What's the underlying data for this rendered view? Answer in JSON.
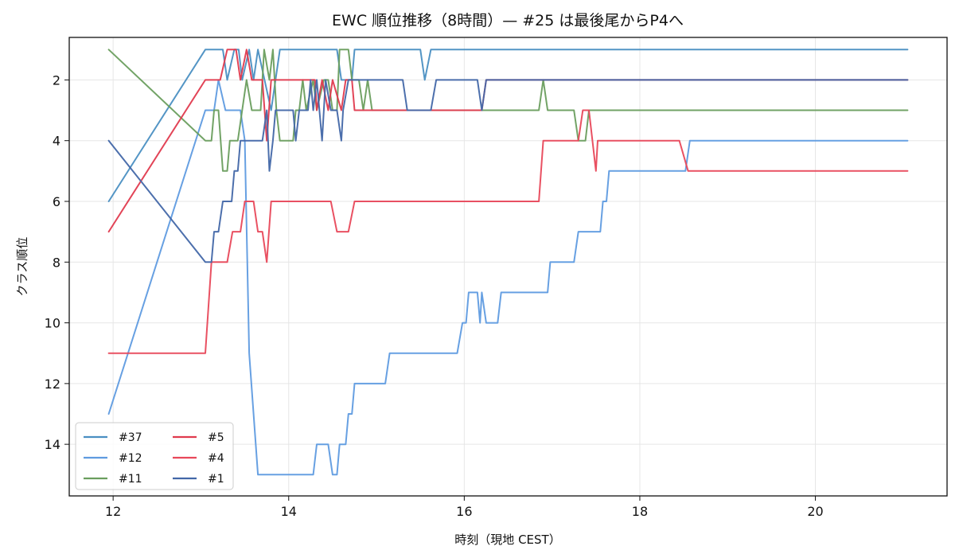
{
  "chart_data": {
    "type": "line",
    "title": "EWC 順位推移（8時間）— #25 は最後尾からP4へ",
    "xlabel": "時刻（現地 CEST）",
    "ylabel": "クラス順位",
    "xlim": [
      11.5,
      21.5
    ],
    "ylim": [
      15.7,
      0.6
    ],
    "y_inverted": true,
    "grid": true,
    "legend_position": "lower-left",
    "legend_columns": 2,
    "x_ticks": [
      12,
      14,
      16,
      18,
      20
    ],
    "x_tick_labels": [
      "12",
      "14",
      "16",
      "18",
      "20"
    ],
    "y_ticks": [
      2,
      4,
      6,
      8,
      10,
      12,
      14
    ],
    "y_tick_labels": [
      "2",
      "4",
      "6",
      "8",
      "10",
      "12",
      "14"
    ],
    "series": [
      {
        "name": "#37",
        "color": "#4a8fc2",
        "points": [
          [
            11.95,
            6
          ],
          [
            13.05,
            1
          ],
          [
            13.25,
            1
          ],
          [
            13.3,
            2
          ],
          [
            13.38,
            1
          ],
          [
            13.43,
            1
          ],
          [
            13.47,
            2
          ],
          [
            13.55,
            1
          ],
          [
            13.6,
            2
          ],
          [
            13.65,
            1
          ],
          [
            13.8,
            3
          ],
          [
            13.9,
            1
          ],
          [
            14.55,
            1
          ],
          [
            14.6,
            2
          ],
          [
            14.72,
            2
          ],
          [
            14.75,
            1
          ],
          [
            15.5,
            1
          ],
          [
            15.55,
            2
          ],
          [
            15.62,
            1
          ],
          [
            21.05,
            1
          ]
        ]
      },
      {
        "name": "#12",
        "color": "#5f9be0",
        "points": [
          [
            11.95,
            13
          ],
          [
            13.05,
            3
          ],
          [
            13.15,
            3
          ],
          [
            13.2,
            2
          ],
          [
            13.28,
            3
          ],
          [
            13.45,
            3
          ],
          [
            13.5,
            4
          ],
          [
            13.55,
            11
          ],
          [
            13.65,
            15
          ],
          [
            14.28,
            15
          ],
          [
            14.32,
            14
          ],
          [
            14.45,
            14
          ],
          [
            14.5,
            15
          ],
          [
            14.55,
            15
          ],
          [
            14.58,
            14
          ],
          [
            14.65,
            14
          ],
          [
            14.68,
            13
          ],
          [
            14.72,
            13
          ],
          [
            14.75,
            12
          ],
          [
            15.1,
            12
          ],
          [
            15.15,
            11
          ],
          [
            15.92,
            11
          ],
          [
            15.98,
            10
          ],
          [
            16.02,
            10
          ],
          [
            16.05,
            9
          ],
          [
            16.15,
            9
          ],
          [
            16.18,
            10
          ],
          [
            16.2,
            9
          ],
          [
            16.25,
            10
          ],
          [
            16.38,
            10
          ],
          [
            16.42,
            9
          ],
          [
            16.95,
            9
          ],
          [
            16.98,
            8
          ],
          [
            17.25,
            8
          ],
          [
            17.3,
            7
          ],
          [
            17.55,
            7
          ],
          [
            17.58,
            6
          ],
          [
            17.62,
            6
          ],
          [
            17.65,
            5
          ],
          [
            18.52,
            5
          ],
          [
            18.57,
            4
          ],
          [
            21.05,
            4
          ]
        ]
      },
      {
        "name": "#11",
        "color": "#6a9e5e",
        "points": [
          [
            11.95,
            1
          ],
          [
            13.05,
            4
          ],
          [
            13.12,
            4
          ],
          [
            13.15,
            3
          ],
          [
            13.2,
            3
          ],
          [
            13.25,
            5
          ],
          [
            13.3,
            5
          ],
          [
            13.33,
            4
          ],
          [
            13.42,
            4
          ],
          [
            13.47,
            3
          ],
          [
            13.52,
            2
          ],
          [
            13.58,
            3
          ],
          [
            13.68,
            3
          ],
          [
            13.72,
            1
          ],
          [
            13.78,
            2
          ],
          [
            13.82,
            1
          ],
          [
            13.86,
            3
          ],
          [
            13.9,
            4
          ],
          [
            14.05,
            4
          ],
          [
            14.08,
            3
          ],
          [
            14.12,
            3
          ],
          [
            14.16,
            2
          ],
          [
            14.2,
            3
          ],
          [
            14.28,
            2
          ],
          [
            14.32,
            3
          ],
          [
            14.4,
            2
          ],
          [
            14.45,
            2
          ],
          [
            14.5,
            3
          ],
          [
            14.55,
            3
          ],
          [
            14.58,
            1
          ],
          [
            14.68,
            1
          ],
          [
            14.72,
            2
          ],
          [
            14.8,
            2
          ],
          [
            14.85,
            3
          ],
          [
            14.9,
            2
          ],
          [
            14.95,
            3
          ],
          [
            16.85,
            3
          ],
          [
            16.9,
            2
          ],
          [
            16.95,
            3
          ],
          [
            17.25,
            3
          ],
          [
            17.3,
            4
          ],
          [
            17.38,
            4
          ],
          [
            17.42,
            3
          ],
          [
            21.05,
            3
          ]
        ]
      },
      {
        "name": "#5",
        "color": "#e03a4e",
        "points": [
          [
            11.95,
            7
          ],
          [
            13.05,
            2
          ],
          [
            13.22,
            2
          ],
          [
            13.3,
            1
          ],
          [
            13.4,
            1
          ],
          [
            13.45,
            2
          ],
          [
            13.52,
            1
          ],
          [
            13.58,
            2
          ],
          [
            13.7,
            2
          ],
          [
            13.75,
            4
          ],
          [
            13.8,
            2
          ],
          [
            14.3,
            2
          ],
          [
            14.32,
            3
          ],
          [
            14.38,
            2
          ],
          [
            14.45,
            3
          ],
          [
            14.5,
            2
          ],
          [
            14.6,
            3
          ],
          [
            14.65,
            2
          ],
          [
            14.72,
            2
          ],
          [
            14.75,
            3
          ],
          [
            16.2,
            3
          ],
          [
            16.25,
            2
          ],
          [
            21.05,
            2
          ]
        ]
      },
      {
        "name": "#4",
        "color": "#e8485a",
        "points": [
          [
            11.95,
            11
          ],
          [
            13.05,
            11
          ],
          [
            13.12,
            8
          ],
          [
            13.3,
            8
          ],
          [
            13.36,
            7
          ],
          [
            13.45,
            7
          ],
          [
            13.5,
            6
          ],
          [
            13.6,
            6
          ],
          [
            13.65,
            7
          ],
          [
            13.7,
            7
          ],
          [
            13.75,
            8
          ],
          [
            13.8,
            6
          ],
          [
            14.48,
            6
          ],
          [
            14.55,
            7
          ],
          [
            14.68,
            7
          ],
          [
            14.75,
            6
          ],
          [
            16.85,
            6
          ],
          [
            16.9,
            4
          ],
          [
            17.3,
            4
          ],
          [
            17.35,
            3
          ],
          [
            17.42,
            3
          ],
          [
            17.5,
            5
          ],
          [
            17.52,
            4
          ],
          [
            18.45,
            4
          ],
          [
            18.55,
            5
          ],
          [
            21.05,
            5
          ]
        ]
      },
      {
        "name": "#1",
        "color": "#4267a8",
        "points": [
          [
            11.95,
            4
          ],
          [
            13.05,
            8
          ],
          [
            13.12,
            8
          ],
          [
            13.15,
            7
          ],
          [
            13.2,
            7
          ],
          [
            13.25,
            6
          ],
          [
            13.35,
            6
          ],
          [
            13.38,
            5
          ],
          [
            13.42,
            5
          ],
          [
            13.45,
            4
          ],
          [
            13.7,
            4
          ],
          [
            13.75,
            3
          ],
          [
            13.78,
            5
          ],
          [
            13.82,
            4
          ],
          [
            13.85,
            3
          ],
          [
            14.05,
            3
          ],
          [
            14.08,
            4
          ],
          [
            14.12,
            3
          ],
          [
            14.22,
            3
          ],
          [
            14.25,
            2
          ],
          [
            14.28,
            3
          ],
          [
            14.32,
            2
          ],
          [
            14.38,
            4
          ],
          [
            14.42,
            2
          ],
          [
            14.48,
            3
          ],
          [
            14.55,
            3
          ],
          [
            14.6,
            4
          ],
          [
            14.62,
            3
          ],
          [
            14.68,
            2
          ],
          [
            15.3,
            2
          ],
          [
            15.35,
            3
          ],
          [
            15.62,
            3
          ],
          [
            15.68,
            2
          ],
          [
            16.15,
            2
          ],
          [
            16.2,
            3
          ],
          [
            16.25,
            2
          ],
          [
            21.05,
            2
          ]
        ]
      }
    ]
  }
}
